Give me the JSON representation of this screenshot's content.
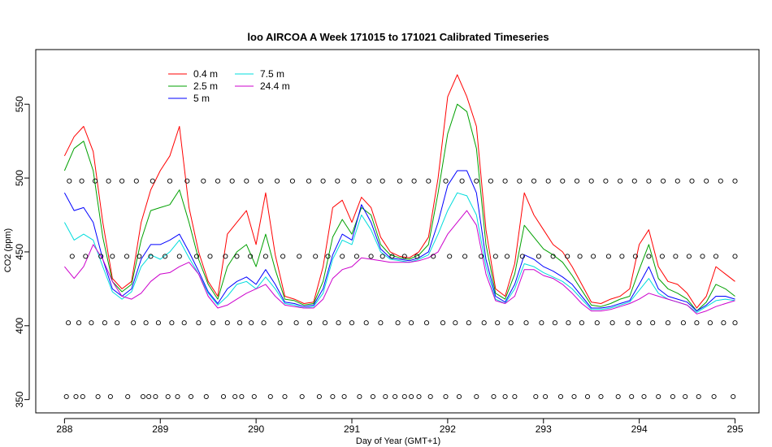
{
  "chart_data": {
    "type": "line",
    "title": "loo AIRCOA A  Week 171015 to 171021  Calibrated Timeseries",
    "xlabel": "Day of Year (GMT+1)",
    "ylabel": "CO2 (ppm)",
    "xlim": [
      287.7,
      295.25
    ],
    "ylim": [
      341,
      587
    ],
    "x_ticks": [
      288,
      289,
      290,
      291,
      292,
      293,
      294,
      295
    ],
    "y_ticks": [
      350,
      400,
      450,
      500,
      550
    ],
    "legend_position": "top-left",
    "colors": {
      "0.4 m": "#ff0000",
      "2.5 m": "#00a000",
      "5 m": "#0000ff",
      "7.5 m": "#00dcdc",
      "24.4 m": "#cc00cc"
    },
    "series": [
      {
        "name": "0.4 m",
        "x": [
          288.0,
          288.1,
          288.2,
          288.3,
          288.4,
          288.5,
          288.6,
          288.7,
          288.8,
          288.9,
          289.0,
          289.1,
          289.2,
          289.3,
          289.4,
          289.5,
          289.6,
          289.7,
          289.8,
          289.9,
          290.0,
          290.1,
          290.2,
          290.3,
          290.4,
          290.5,
          290.6,
          290.7,
          290.8,
          290.9,
          291.0,
          291.1,
          291.2,
          291.3,
          291.4,
          291.5,
          291.6,
          291.7,
          291.8,
          291.9,
          292.0,
          292.1,
          292.2,
          292.3,
          292.4,
          292.5,
          292.6,
          292.7,
          292.8,
          292.9,
          293.0,
          293.1,
          293.2,
          293.3,
          293.4,
          293.5,
          293.6,
          293.7,
          293.8,
          293.9,
          294.0,
          294.1,
          294.2,
          294.3,
          294.4,
          294.5,
          294.6,
          294.7,
          294.8,
          294.9,
          295.0
        ],
        "values": [
          515,
          528,
          535,
          518,
          470,
          432,
          425,
          430,
          470,
          492,
          505,
          515,
          535,
          480,
          450,
          430,
          420,
          462,
          470,
          478,
          455,
          490,
          448,
          420,
          418,
          415,
          416,
          440,
          480,
          485,
          470,
          487,
          480,
          460,
          450,
          447,
          446,
          450,
          460,
          500,
          555,
          570,
          555,
          535,
          465,
          425,
          420,
          442,
          490,
          475,
          465,
          455,
          450,
          440,
          428,
          416,
          415,
          418,
          420,
          425,
          455,
          465,
          440,
          430,
          428,
          422,
          412,
          420,
          440,
          435,
          430
        ]
      },
      {
        "name": "2.5 m",
        "x": [
          288.0,
          288.1,
          288.2,
          288.3,
          288.4,
          288.5,
          288.6,
          288.7,
          288.8,
          288.9,
          289.0,
          289.1,
          289.2,
          289.3,
          289.4,
          289.5,
          289.6,
          289.7,
          289.8,
          289.9,
          290.0,
          290.1,
          290.2,
          290.3,
          290.4,
          290.5,
          290.6,
          290.7,
          290.8,
          290.9,
          291.0,
          291.1,
          291.2,
          291.3,
          291.4,
          291.5,
          291.6,
          291.7,
          291.8,
          291.9,
          292.0,
          292.1,
          292.2,
          292.3,
          292.4,
          292.5,
          292.6,
          292.7,
          292.8,
          292.9,
          293.0,
          293.1,
          293.2,
          293.3,
          293.4,
          293.5,
          293.6,
          293.7,
          293.8,
          293.9,
          294.0,
          294.1,
          294.2,
          294.3,
          294.4,
          294.5,
          294.6,
          294.7,
          294.8,
          294.9,
          295.0
        ],
        "values": [
          505,
          520,
          525,
          505,
          460,
          430,
          423,
          428,
          458,
          478,
          480,
          482,
          492,
          470,
          445,
          428,
          418,
          440,
          450,
          455,
          440,
          462,
          438,
          418,
          417,
          414,
          415,
          430,
          460,
          472,
          462,
          480,
          475,
          455,
          448,
          446,
          445,
          448,
          455,
          490,
          530,
          550,
          545,
          520,
          455,
          422,
          418,
          435,
          468,
          460,
          452,
          448,
          443,
          434,
          424,
          414,
          413,
          415,
          418,
          420,
          438,
          455,
          432,
          425,
          422,
          418,
          410,
          416,
          428,
          425,
          420
        ]
      },
      {
        "name": "5 m",
        "x": [
          288.0,
          288.1,
          288.2,
          288.3,
          288.4,
          288.5,
          288.6,
          288.7,
          288.8,
          288.9,
          289.0,
          289.1,
          289.2,
          289.3,
          289.4,
          289.5,
          289.6,
          289.7,
          289.8,
          289.9,
          290.0,
          290.1,
          290.2,
          290.3,
          290.4,
          290.5,
          290.6,
          290.7,
          290.8,
          290.9,
          291.0,
          291.1,
          291.2,
          291.3,
          291.4,
          291.5,
          291.6,
          291.7,
          291.8,
          291.9,
          292.0,
          292.1,
          292.2,
          292.3,
          292.4,
          292.5,
          292.6,
          292.7,
          292.8,
          292.9,
          293.0,
          293.1,
          293.2,
          293.3,
          293.4,
          293.5,
          293.6,
          293.7,
          293.8,
          293.9,
          294.0,
          294.1,
          294.2,
          294.3,
          294.4,
          294.5,
          294.6,
          294.7,
          294.8,
          294.9,
          295.0
        ],
        "values": [
          490,
          478,
          480,
          470,
          445,
          425,
          420,
          425,
          445,
          455,
          455,
          458,
          462,
          450,
          437,
          423,
          415,
          425,
          430,
          433,
          428,
          438,
          428,
          416,
          415,
          413,
          414,
          425,
          448,
          462,
          458,
          482,
          470,
          452,
          446,
          445,
          444,
          446,
          450,
          470,
          495,
          505,
          505,
          490,
          445,
          420,
          416,
          428,
          448,
          445,
          440,
          437,
          433,
          428,
          420,
          412,
          412,
          413,
          415,
          417,
          428,
          440,
          425,
          420,
          418,
          416,
          410,
          414,
          420,
          420,
          418
        ]
      },
      {
        "name": "7.5 m",
        "x": [
          288.0,
          288.1,
          288.2,
          288.3,
          288.4,
          288.5,
          288.6,
          288.7,
          288.8,
          288.9,
          289.0,
          289.1,
          289.2,
          289.3,
          289.4,
          289.5,
          289.6,
          289.7,
          289.8,
          289.9,
          290.0,
          290.1,
          290.2,
          290.3,
          290.4,
          290.5,
          290.6,
          290.7,
          290.8,
          290.9,
          291.0,
          291.1,
          291.2,
          291.3,
          291.4,
          291.5,
          291.6,
          291.7,
          291.8,
          291.9,
          292.0,
          292.1,
          292.2,
          292.3,
          292.4,
          292.5,
          292.6,
          292.7,
          292.8,
          292.9,
          293.0,
          293.1,
          293.2,
          293.3,
          293.4,
          293.5,
          293.6,
          293.7,
          293.8,
          293.9,
          294.0,
          294.1,
          294.2,
          294.3,
          294.4,
          294.5,
          294.6,
          294.7,
          294.8,
          294.9,
          295.0
        ],
        "values": [
          470,
          458,
          462,
          458,
          440,
          423,
          418,
          423,
          440,
          448,
          445,
          450,
          458,
          446,
          435,
          422,
          414,
          420,
          428,
          430,
          425,
          433,
          425,
          415,
          414,
          412,
          413,
          422,
          445,
          458,
          455,
          475,
          465,
          450,
          445,
          444,
          443,
          445,
          448,
          462,
          478,
          490,
          488,
          475,
          440,
          418,
          415,
          425,
          442,
          440,
          436,
          433,
          430,
          425,
          418,
          411,
          411,
          412,
          414,
          416,
          424,
          432,
          422,
          418,
          416,
          414,
          409,
          413,
          417,
          418,
          417
        ]
      },
      {
        "name": "24.4 m",
        "x": [
          288.0,
          288.1,
          288.2,
          288.3,
          288.4,
          288.5,
          288.6,
          288.7,
          288.8,
          288.9,
          289.0,
          289.1,
          289.2,
          289.3,
          289.4,
          289.5,
          289.6,
          289.7,
          289.8,
          289.9,
          290.0,
          290.1,
          290.2,
          290.3,
          290.4,
          290.5,
          290.6,
          290.7,
          290.8,
          290.9,
          291.0,
          291.1,
          291.2,
          291.3,
          291.4,
          291.5,
          291.6,
          291.7,
          291.8,
          291.9,
          292.0,
          292.1,
          292.2,
          292.3,
          292.4,
          292.5,
          292.6,
          292.7,
          292.8,
          292.9,
          293.0,
          293.1,
          293.2,
          293.3,
          293.4,
          293.5,
          293.6,
          293.7,
          293.8,
          293.9,
          294.0,
          294.1,
          294.2,
          294.3,
          294.4,
          294.5,
          294.6,
          294.7,
          294.8,
          294.9,
          295.0
        ],
        "values": [
          440,
          432,
          440,
          455,
          445,
          430,
          420,
          418,
          422,
          430,
          435,
          436,
          440,
          443,
          435,
          420,
          412,
          414,
          418,
          422,
          425,
          428,
          420,
          414,
          413,
          412,
          412,
          418,
          432,
          438,
          440,
          446,
          445,
          444,
          443,
          443,
          443,
          444,
          446,
          450,
          462,
          470,
          478,
          468,
          435,
          417,
          415,
          420,
          438,
          438,
          434,
          432,
          428,
          422,
          415,
          410,
          410,
          411,
          413,
          415,
          418,
          422,
          420,
          418,
          416,
          414,
          408,
          410,
          413,
          415,
          417
        ]
      },
      {
        "name": "",
        "marker": "open-circle",
        "x": [
          288.02,
          288.12,
          288.19,
          288.35,
          288.48,
          288.66,
          288.82,
          288.88,
          288.95,
          289.08,
          289.18,
          289.32,
          289.48,
          289.66,
          289.78,
          289.85,
          289.98,
          290.15,
          290.3,
          290.48,
          290.66,
          290.8,
          290.92,
          291.08,
          291.22,
          291.35,
          291.45,
          291.55,
          291.62,
          291.7,
          291.82,
          291.98,
          292.12,
          292.3,
          292.48,
          292.6,
          292.7,
          292.92,
          293.02,
          293.18,
          293.32,
          293.46,
          293.6,
          293.78,
          293.92,
          294.05,
          294.2,
          294.35,
          294.48,
          294.62,
          294.78,
          294.98
        ],
        "values": [
          352,
          352,
          352,
          352,
          352,
          352,
          352,
          352,
          352,
          352,
          352,
          352,
          352,
          352,
          352,
          352,
          352,
          352,
          352,
          352,
          352,
          352,
          352,
          352,
          352,
          352,
          352,
          352,
          352,
          352,
          352,
          352,
          352,
          352,
          352,
          352,
          352,
          352,
          352,
          352,
          352,
          352,
          352,
          352,
          352,
          352,
          352,
          352,
          352,
          352,
          352,
          352
        ]
      },
      {
        "name": "",
        "marker": "open-circle",
        "x": [
          288.04,
          288.15,
          288.28,
          288.42,
          288.55,
          288.72,
          288.85,
          288.98,
          289.12,
          289.25,
          289.4,
          289.55,
          289.7,
          289.83,
          289.95,
          290.08,
          290.25,
          290.42,
          290.56,
          290.72,
          290.86,
          291.0,
          291.15,
          291.3,
          291.48,
          291.62,
          291.78,
          291.95,
          292.08,
          292.22,
          292.38,
          292.52,
          292.66,
          292.82,
          292.98,
          293.12,
          293.26,
          293.4,
          293.56,
          293.72,
          293.88,
          294.0,
          294.14,
          294.3,
          294.46,
          294.6,
          294.74,
          294.88,
          295.0
        ],
        "values": [
          402,
          402,
          402,
          402,
          402,
          402,
          402,
          402,
          402,
          402,
          402,
          402,
          402,
          402,
          402,
          402,
          402,
          402,
          402,
          402,
          402,
          402,
          402,
          402,
          402,
          402,
          402,
          402,
          402,
          402,
          402,
          402,
          402,
          402,
          402,
          402,
          402,
          402,
          402,
          402,
          402,
          402,
          402,
          402,
          402,
          402,
          402,
          402,
          402
        ]
      },
      {
        "name": "",
        "marker": "open-circle",
        "x": [
          288.08,
          288.22,
          288.38,
          288.5,
          288.65,
          288.78,
          288.9,
          289.05,
          289.2,
          289.38,
          289.52,
          289.68,
          289.8,
          289.94,
          290.1,
          290.28,
          290.45,
          290.62,
          290.75,
          290.9,
          291.05,
          291.2,
          291.32,
          291.42,
          291.55,
          291.68,
          291.85,
          292.02,
          292.18,
          292.35,
          292.5,
          292.62,
          292.78,
          292.95,
          293.1,
          293.25,
          293.38,
          293.52,
          293.68,
          293.82,
          293.96,
          294.1,
          294.24,
          294.38,
          294.52,
          294.66,
          294.8,
          295.0
        ],
        "values": [
          447,
          447,
          447,
          447,
          447,
          447,
          447,
          447,
          447,
          447,
          447,
          447,
          447,
          447,
          447,
          447,
          447,
          447,
          447,
          447,
          447,
          447,
          447,
          447,
          447,
          447,
          447,
          447,
          447,
          447,
          447,
          447,
          447,
          447,
          447,
          447,
          447,
          447,
          447,
          447,
          447,
          447,
          447,
          447,
          447,
          447,
          447,
          447
        ]
      },
      {
        "name": "",
        "marker": "open-circle",
        "x": [
          288.05,
          288.18,
          288.32,
          288.46,
          288.6,
          288.75,
          288.92,
          289.1,
          289.28,
          289.45,
          289.6,
          289.75,
          289.9,
          290.05,
          290.22,
          290.38,
          290.55,
          290.7,
          290.85,
          291.02,
          291.18,
          291.32,
          291.5,
          291.65,
          291.8,
          291.98,
          292.15,
          292.3,
          292.45,
          292.6,
          292.75,
          292.9,
          293.05,
          293.2,
          293.35,
          293.5,
          293.65,
          293.8,
          293.95,
          294.1,
          294.25,
          294.4,
          294.55,
          294.7,
          294.85,
          295.0
        ],
        "values": [
          498,
          498,
          498,
          498,
          498,
          498,
          498,
          498,
          498,
          498,
          498,
          498,
          498,
          498,
          498,
          498,
          498,
          498,
          498,
          498,
          498,
          498,
          498,
          498,
          498,
          498,
          498,
          498,
          498,
          498,
          498,
          498,
          498,
          498,
          498,
          498,
          498,
          498,
          498,
          498,
          498,
          498,
          498,
          498,
          498,
          498
        ]
      }
    ]
  }
}
